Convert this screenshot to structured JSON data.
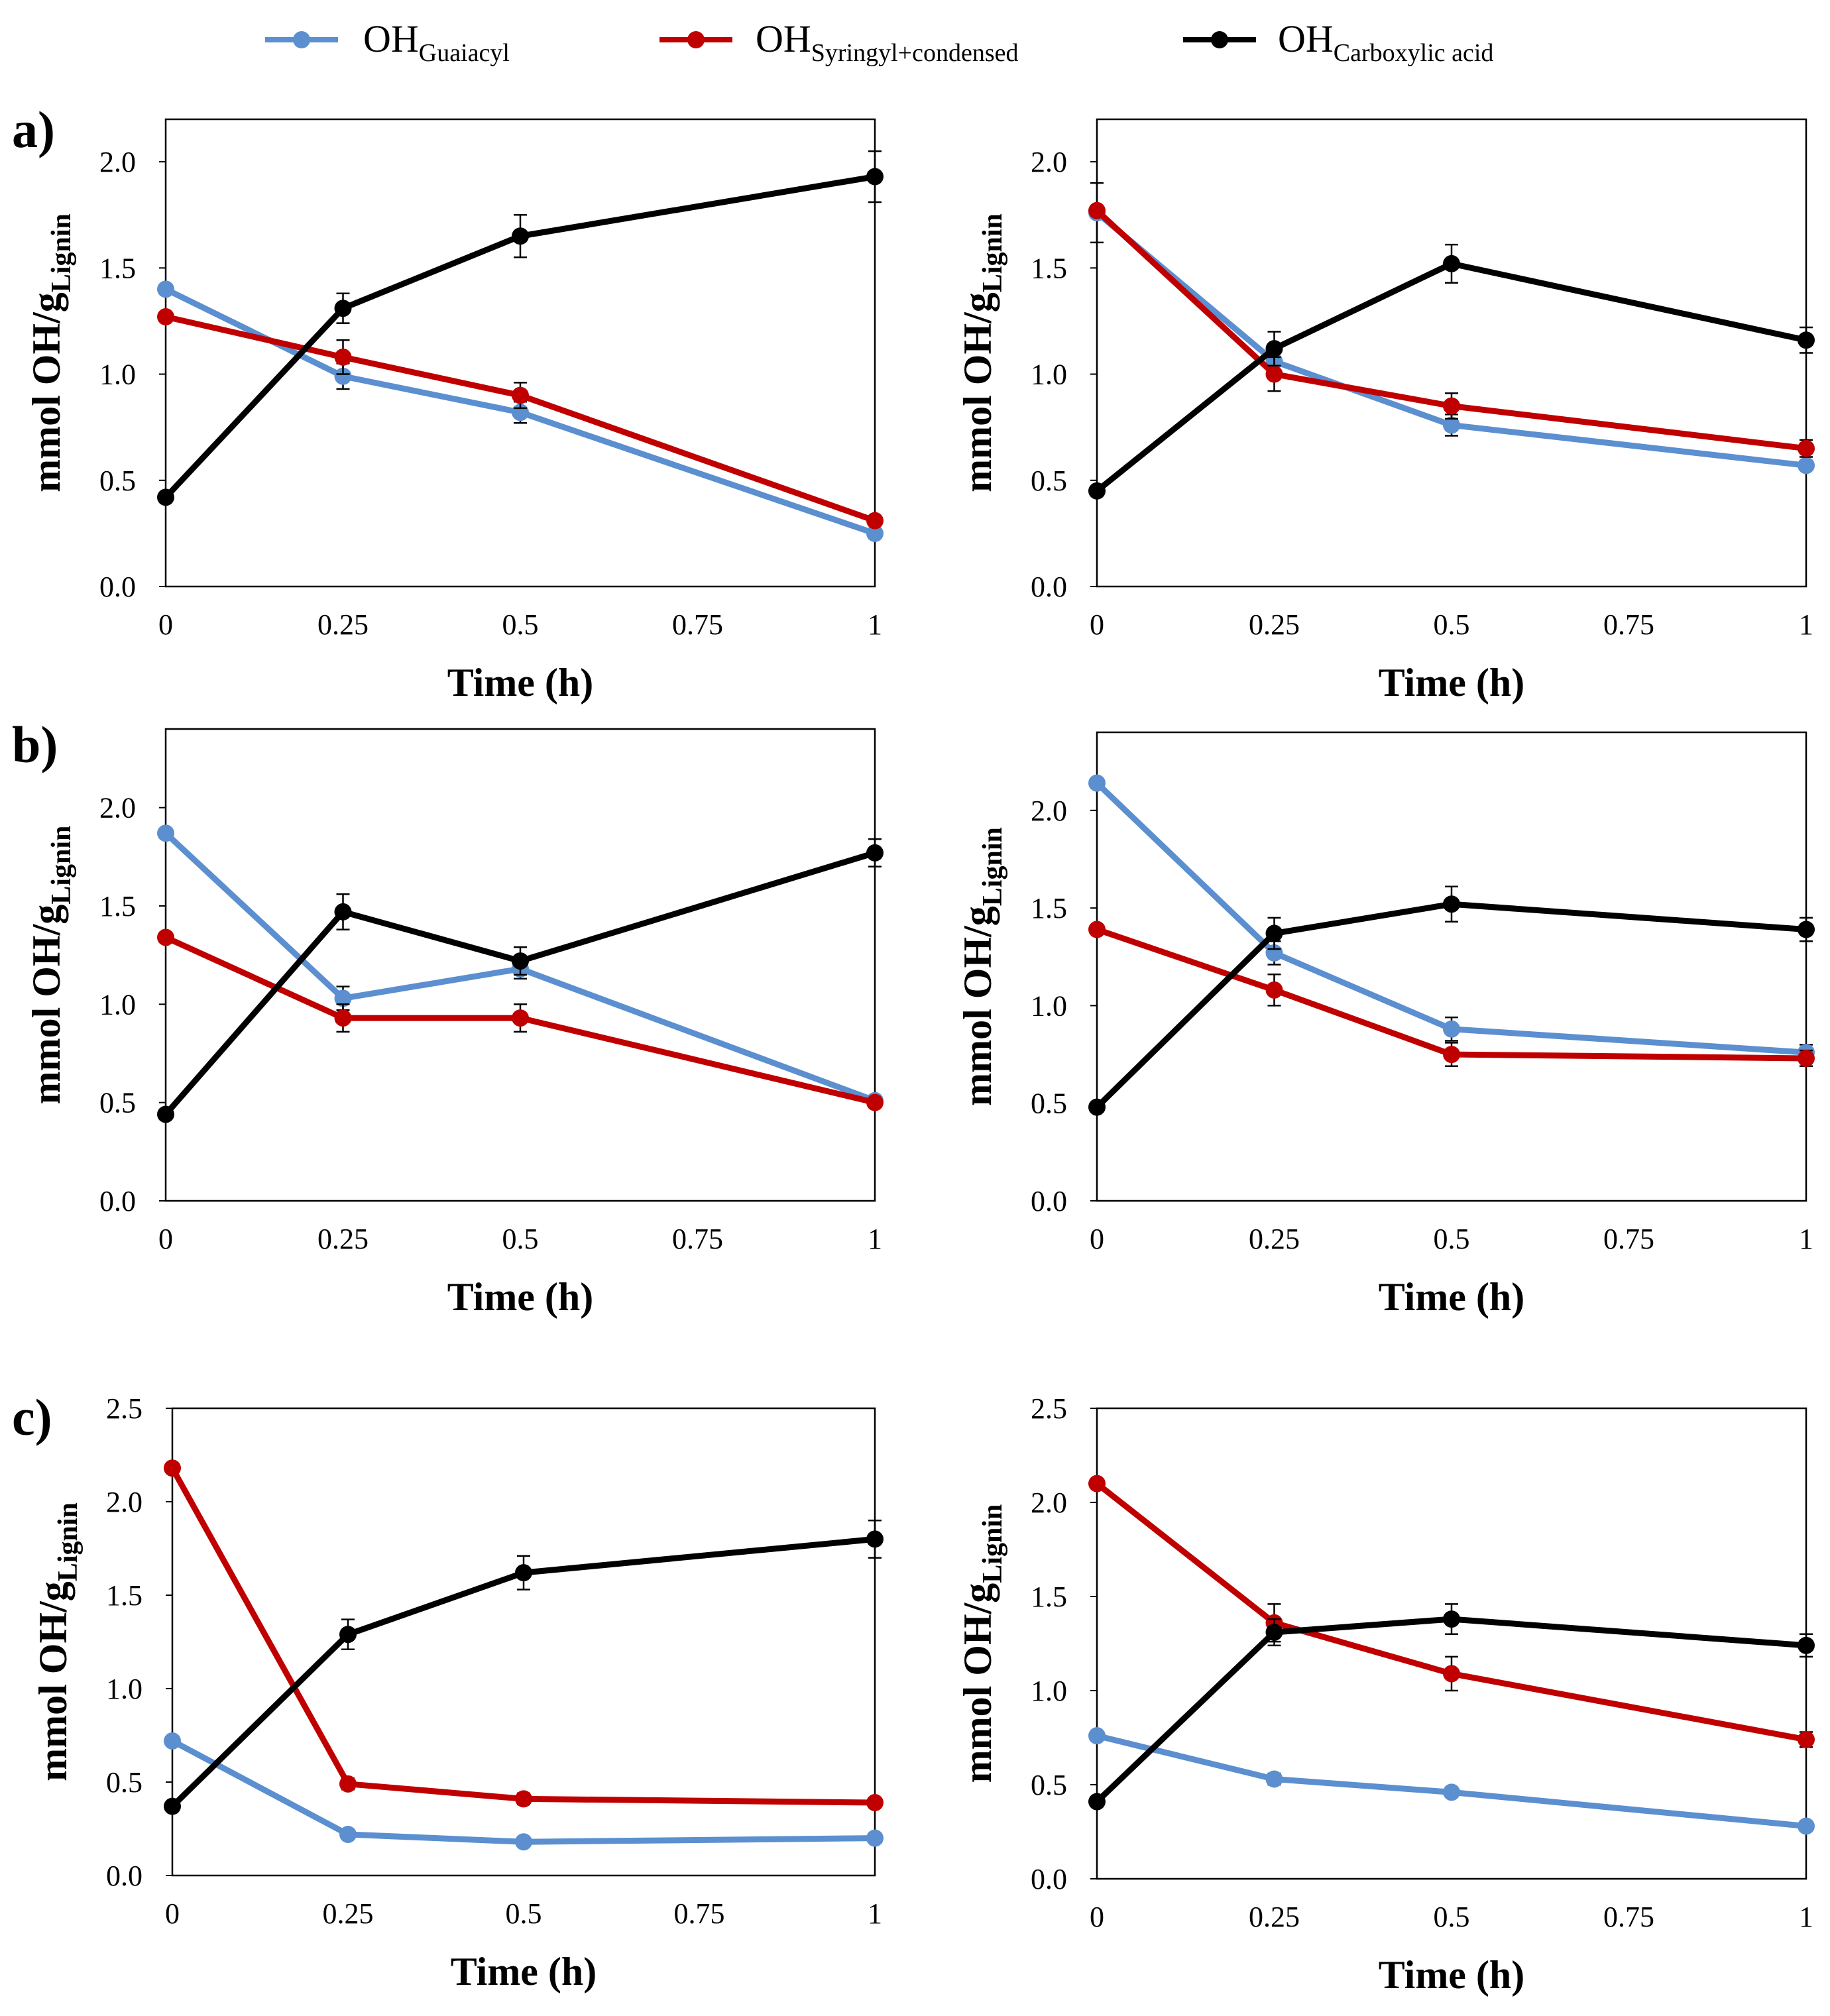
{
  "legend": [
    {
      "base": "OH",
      "sub": "Guaiacyl",
      "color": "#5b8fcf"
    },
    {
      "base": "OH",
      "sub": "Syringyl+condensed",
      "color": "#c00000"
    },
    {
      "base": "OH",
      "sub": "Carboxylic acid",
      "color": "#000000"
    }
  ],
  "panel_labels": [
    "a)",
    "b)",
    "c)"
  ],
  "chart_data": [
    {
      "type": "line",
      "row": "a",
      "col": "left",
      "xlabel": "Time (h)",
      "ylabel_base": "mmol OH/g",
      "ylabel_sub": "Lignin",
      "x": [
        0,
        0.25,
        0.5,
        1
      ],
      "xticks": [
        "0",
        "0.25",
        "0.5",
        "0.75",
        "1"
      ],
      "xlim": [
        0,
        1
      ],
      "ylim": [
        0,
        2.2
      ],
      "yticks": [
        "0.0",
        "0.5",
        "1.0",
        "1.5",
        "2.0"
      ],
      "series": [
        {
          "name": "OH Guaiacyl",
          "color": "#5b8fcf",
          "values": [
            1.4,
            0.99,
            0.82,
            0.25
          ],
          "errors": [
            0,
            0.06,
            0.05,
            0
          ]
        },
        {
          "name": "OH Syringyl+condensed",
          "color": "#c00000",
          "values": [
            1.27,
            1.08,
            0.9,
            0.31
          ],
          "errors": [
            0,
            0.08,
            0.06,
            0
          ]
        },
        {
          "name": "OH Carboxylic acid",
          "color": "#000000",
          "values": [
            0.42,
            1.31,
            1.65,
            1.93
          ],
          "errors": [
            0,
            0.07,
            0.1,
            0.12
          ]
        }
      ]
    },
    {
      "type": "line",
      "row": "a",
      "col": "right",
      "xlabel": "Time (h)",
      "ylabel_base": "mmol OH/g",
      "ylabel_sub": "Lignin",
      "x": [
        0,
        0.25,
        0.5,
        1
      ],
      "xticks": [
        "0",
        "0.25",
        "0.5",
        "0.75",
        "1"
      ],
      "xlim": [
        0,
        1
      ],
      "ylim": [
        0,
        2.2
      ],
      "yticks": [
        "0.0",
        "0.5",
        "1.0",
        "1.5",
        "2.0"
      ],
      "series": [
        {
          "name": "OH Guaiacyl",
          "color": "#5b8fcf",
          "values": [
            1.76,
            1.06,
            0.76,
            0.57
          ],
          "errors": [
            0.14,
            0.05,
            0.05,
            0
          ]
        },
        {
          "name": "OH Syringyl+condensed",
          "color": "#c00000",
          "values": [
            1.77,
            1.0,
            0.85,
            0.65
          ],
          "errors": [
            0,
            0.08,
            0.06,
            0.04
          ]
        },
        {
          "name": "OH Carboxylic acid",
          "color": "#000000",
          "values": [
            0.45,
            1.12,
            1.52,
            1.16
          ],
          "errors": [
            0,
            0.08,
            0.09,
            0.06
          ]
        }
      ]
    },
    {
      "type": "line",
      "row": "b",
      "col": "left",
      "xlabel": "Time (h)",
      "ylabel_base": "mmol OH/g",
      "ylabel_sub": "Lignin",
      "x": [
        0,
        0.25,
        0.5,
        1
      ],
      "xticks": [
        "0",
        "0.25",
        "0.5",
        "0.75",
        "1"
      ],
      "xlim": [
        0,
        1
      ],
      "ylim": [
        0,
        2.4
      ],
      "yticks": [
        "0.0",
        "0.5",
        "1.0",
        "1.5",
        "2.0"
      ],
      "series": [
        {
          "name": "OH Guaiacyl",
          "color": "#5b8fcf",
          "values": [
            1.87,
            1.03,
            1.18,
            0.51
          ],
          "errors": [
            0,
            0.06,
            0.05,
            0
          ]
        },
        {
          "name": "OH Syringyl+condensed",
          "color": "#c00000",
          "values": [
            1.34,
            0.93,
            0.93,
            0.5
          ],
          "errors": [
            0,
            0.07,
            0.07,
            0
          ]
        },
        {
          "name": "OH Carboxylic acid",
          "color": "#000000",
          "values": [
            0.44,
            1.47,
            1.22,
            1.77
          ],
          "errors": [
            0,
            0.09,
            0.07,
            0.07
          ]
        }
      ]
    },
    {
      "type": "line",
      "row": "b",
      "col": "right",
      "xlabel": "Time (h)",
      "ylabel_base": "mmol OH/g",
      "ylabel_sub": "Lignin",
      "x": [
        0,
        0.25,
        0.5,
        1
      ],
      "xticks": [
        "0",
        "0.25",
        "0.5",
        "0.75",
        "1"
      ],
      "xlim": [
        0,
        1
      ],
      "ylim": [
        0,
        2.4
      ],
      "yticks": [
        "0.0",
        "0.5",
        "1.0",
        "1.5",
        "2.0"
      ],
      "series": [
        {
          "name": "OH Guaiacyl",
          "color": "#5b8fcf",
          "values": [
            2.14,
            1.27,
            0.88,
            0.76
          ],
          "errors": [
            0,
            0.06,
            0.06,
            0.04
          ]
        },
        {
          "name": "OH Syringyl+condensed",
          "color": "#c00000",
          "values": [
            1.39,
            1.08,
            0.75,
            0.73
          ],
          "errors": [
            0,
            0.08,
            0.06,
            0.04
          ]
        },
        {
          "name": "OH Carboxylic acid",
          "color": "#000000",
          "values": [
            0.48,
            1.37,
            1.52,
            1.39
          ],
          "errors": [
            0,
            0.08,
            0.09,
            0.06
          ]
        }
      ]
    },
    {
      "type": "line",
      "row": "c",
      "col": "left",
      "xlabel": "Time (h)",
      "ylabel_base": "mmol OH/g",
      "ylabel_sub": "Lignin",
      "x": [
        0,
        0.25,
        0.5,
        1
      ],
      "xticks": [
        "0",
        "0.25",
        "0.5",
        "0.75",
        "1"
      ],
      "xlim": [
        0,
        1
      ],
      "ylim": [
        0,
        2.5
      ],
      "yticks": [
        "0.0",
        "0.5",
        "1.0",
        "1.5",
        "2.0",
        "2.5"
      ],
      "series": [
        {
          "name": "OH Guaiacyl",
          "color": "#5b8fcf",
          "values": [
            0.72,
            0.22,
            0.18,
            0.2
          ],
          "errors": [
            0,
            0.02,
            0.02,
            0.02
          ]
        },
        {
          "name": "OH Syringyl+condensed",
          "color": "#c00000",
          "values": [
            2.18,
            0.49,
            0.41,
            0.39
          ],
          "errors": [
            0,
            0.03,
            0.03,
            0.02
          ]
        },
        {
          "name": "OH Carboxylic acid",
          "color": "#000000",
          "values": [
            0.37,
            1.29,
            1.62,
            1.8
          ],
          "errors": [
            0,
            0.08,
            0.09,
            0.1
          ]
        }
      ]
    },
    {
      "type": "line",
      "row": "c",
      "col": "right",
      "xlabel": "Time (h)",
      "ylabel_base": "mmol OH/g",
      "ylabel_sub": "Lignin",
      "x": [
        0,
        0.25,
        0.5,
        1
      ],
      "xticks": [
        "0",
        "0.25",
        "0.5",
        "0.75",
        "1"
      ],
      "xlim": [
        0,
        1
      ],
      "ylim": [
        0,
        2.5
      ],
      "yticks": [
        "0.0",
        "0.5",
        "1.0",
        "1.5",
        "2.0",
        "2.5"
      ],
      "series": [
        {
          "name": "OH Guaiacyl",
          "color": "#5b8fcf",
          "values": [
            0.76,
            0.53,
            0.46,
            0.28
          ],
          "errors": [
            0,
            0.03,
            0.02,
            0.02
          ]
        },
        {
          "name": "OH Syringyl+condensed",
          "color": "#c00000",
          "values": [
            2.1,
            1.36,
            1.09,
            0.74
          ],
          "errors": [
            0,
            0.1,
            0.09,
            0.04
          ]
        },
        {
          "name": "OH Carboxylic acid",
          "color": "#000000",
          "values": [
            0.41,
            1.31,
            1.38,
            1.24
          ],
          "errors": [
            0,
            0.07,
            0.08,
            0.06
          ]
        }
      ]
    }
  ]
}
